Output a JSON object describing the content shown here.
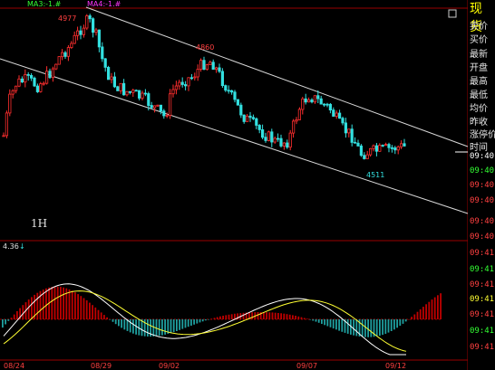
{
  "indicators": {
    "ma3": "MA3:-1.#",
    "ma4": "MA4:-1.#"
  },
  "chart_labels": {
    "high_price": "4977",
    "mid_high": "4860",
    "low_price": "4511",
    "period": "1H",
    "sub_value": "4.36"
  },
  "dates": [
    "08/24",
    "08/29",
    "09/02",
    "09/07",
    "09/12"
  ],
  "panel": {
    "title": "现货",
    "rows": [
      "卖价",
      "买价",
      "最新",
      "开盘",
      "最高",
      "最低",
      "均价",
      "昨收",
      "涨停价",
      "时间"
    ],
    "times": [
      "09:40",
      "09:40",
      "09:40",
      "09:40",
      "09:40",
      "09:40",
      "09:41",
      "09:41",
      "09:41",
      "09:41",
      "09:41",
      "09:41",
      "09:41"
    ]
  },
  "colors": {
    "up": "#ff2e2e",
    "down": "#33e0e0",
    "grid": "#9a0000",
    "channel": "#d8d8d8",
    "macd_white": "#ffffff",
    "macd_yellow": "#ffff33",
    "ma3": "#33ff33",
    "ma4": "#ff33ff"
  }
}
